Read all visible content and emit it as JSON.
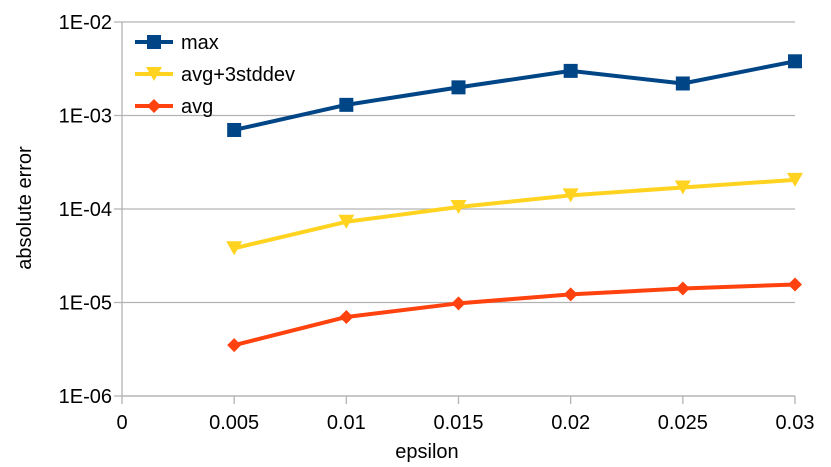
{
  "chart_data": {
    "type": "line",
    "title": "",
    "xlabel": "epsilon",
    "ylabel": "absolute error",
    "yscale": "log",
    "xlim": [
      0,
      0.03
    ],
    "ylim": [
      1e-06,
      0.01
    ],
    "x_ticks": [
      "0",
      "0.005",
      "0.01",
      "0.015",
      "0.02",
      "0.025",
      "0.03"
    ],
    "x_tick_values": [
      0,
      0.005,
      0.01,
      0.015,
      0.02,
      0.025,
      0.03
    ],
    "y_ticks": [
      "1E-02",
      "1E-03",
      "1E-04",
      "1E-05",
      "1E-06"
    ],
    "y_tick_values": [
      0.01,
      0.001,
      0.0001,
      1e-05,
      1e-06
    ],
    "x": [
      0.005,
      0.01,
      0.015,
      0.02,
      0.025,
      0.03
    ],
    "grid": "horizontal",
    "legend_position": "top-left",
    "series": [
      {
        "name": "max",
        "color": "#004586",
        "marker": "square",
        "values": [
          0.0007,
          0.0013,
          0.002,
          0.003,
          0.0022,
          0.0038
        ]
      },
      {
        "name": "avg+3stddev",
        "color": "#ffd320",
        "marker": "triangle-down",
        "values": [
          3.8e-05,
          7.3e-05,
          0.000105,
          0.00014,
          0.00017,
          0.000205
        ]
      },
      {
        "name": "avg",
        "color": "#ff420e",
        "marker": "diamond",
        "values": [
          3.5e-06,
          7e-06,
          9.8e-06,
          1.22e-05,
          1.41e-05,
          1.56e-05
        ]
      }
    ]
  }
}
